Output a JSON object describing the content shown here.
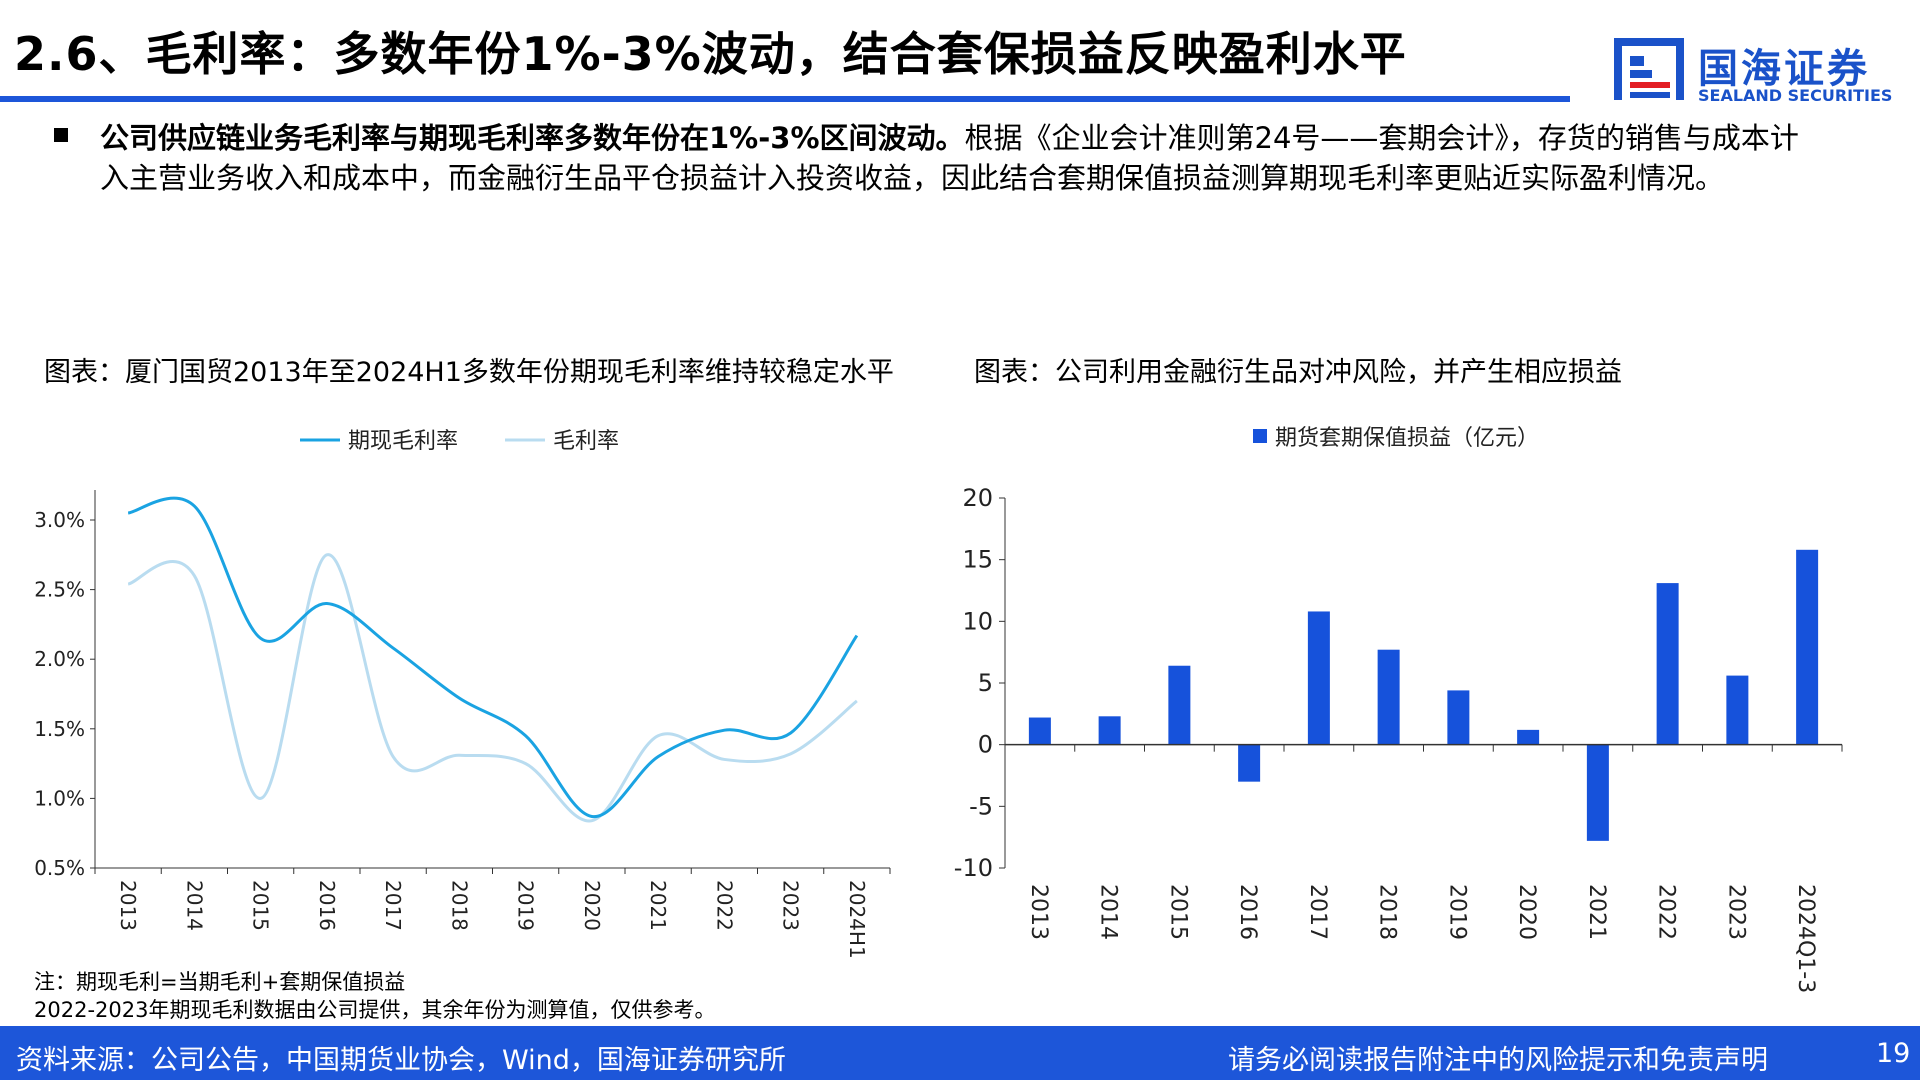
{
  "header": {
    "title": "2.6、毛利率：多数年份1%-3%波动，结合套保损益反映盈利水平",
    "logo_cn": "国海证券",
    "logo_en": "SEALAND SECURITIES"
  },
  "summary": {
    "bold": "公司供应链业务毛利率与期现毛利率多数年份在1%-3%区间波动。",
    "text": "根据《企业会计准则第24号——套期会计》，存货的销售与成本计入主营业务收入和成本中，而金融衍生品平仓损益计入投资收益，因此结合套期保值损益测算期现毛利率更贴近实际盈利情况。"
  },
  "left_chart_title": "图表：厦门国贸2013年至2024H1多数年份期现毛利率维持较稳定水平",
  "right_chart_title": "图表：公司利用金融衍生品对冲风险，并产生相应损益",
  "notes": {
    "line1": "注：期现毛利=当期毛利+套期保值损益",
    "line2": "2022-2023年期现毛利数据由公司提供，其余年份为测算值，仅供参考。"
  },
  "footer": {
    "source": "资料来源：公司公告，中国期货业协会，Wind，国海证券研究所",
    "disclaimer": "请务必阅读报告附注中的风险提示和免责声明",
    "page": "19"
  },
  "colors": {
    "brand": "#1d56d9",
    "line_dark": "#1aa3e2",
    "line_light": "#b9dcf0",
    "bar": "#1652db"
  },
  "chart_data": [
    {
      "type": "line",
      "categories": [
        "2013",
        "2014",
        "2015",
        "2016",
        "2017",
        "2018",
        "2019",
        "2020",
        "2021",
        "2022",
        "2023",
        "2024H1"
      ],
      "series": [
        {
          "name": "期现毛利率",
          "values": [
            3.05,
            3.1,
            2.15,
            2.4,
            2.08,
            1.72,
            1.45,
            0.87,
            1.3,
            1.49,
            1.47,
            2.17
          ]
        },
        {
          "name": "毛利率",
          "values": [
            2.54,
            2.6,
            1.0,
            2.75,
            1.3,
            1.31,
            1.25,
            0.84,
            1.45,
            1.28,
            1.32,
            1.7
          ]
        }
      ],
      "ylim": [
        0.5,
        3.0
      ],
      "yticks": [
        "0.5%",
        "1.0%",
        "1.5%",
        "2.0%",
        "2.5%",
        "3.0%"
      ],
      "legend": "top"
    },
    {
      "type": "bar",
      "categories": [
        "2013",
        "2014",
        "2015",
        "2016",
        "2017",
        "2018",
        "2019",
        "2020",
        "2021",
        "2022",
        "2023",
        "2024Q1-3"
      ],
      "series": [
        {
          "name": "期货套期保值损益（亿元）",
          "values": [
            2.2,
            2.3,
            6.4,
            -3.0,
            10.8,
            7.7,
            4.4,
            1.2,
            -7.8,
            13.1,
            5.6,
            15.8
          ]
        }
      ],
      "ylim": [
        -10,
        20
      ],
      "yticks": [
        "-10",
        "-5",
        "0",
        "5",
        "10",
        "15",
        "20"
      ],
      "legend": "top"
    }
  ]
}
